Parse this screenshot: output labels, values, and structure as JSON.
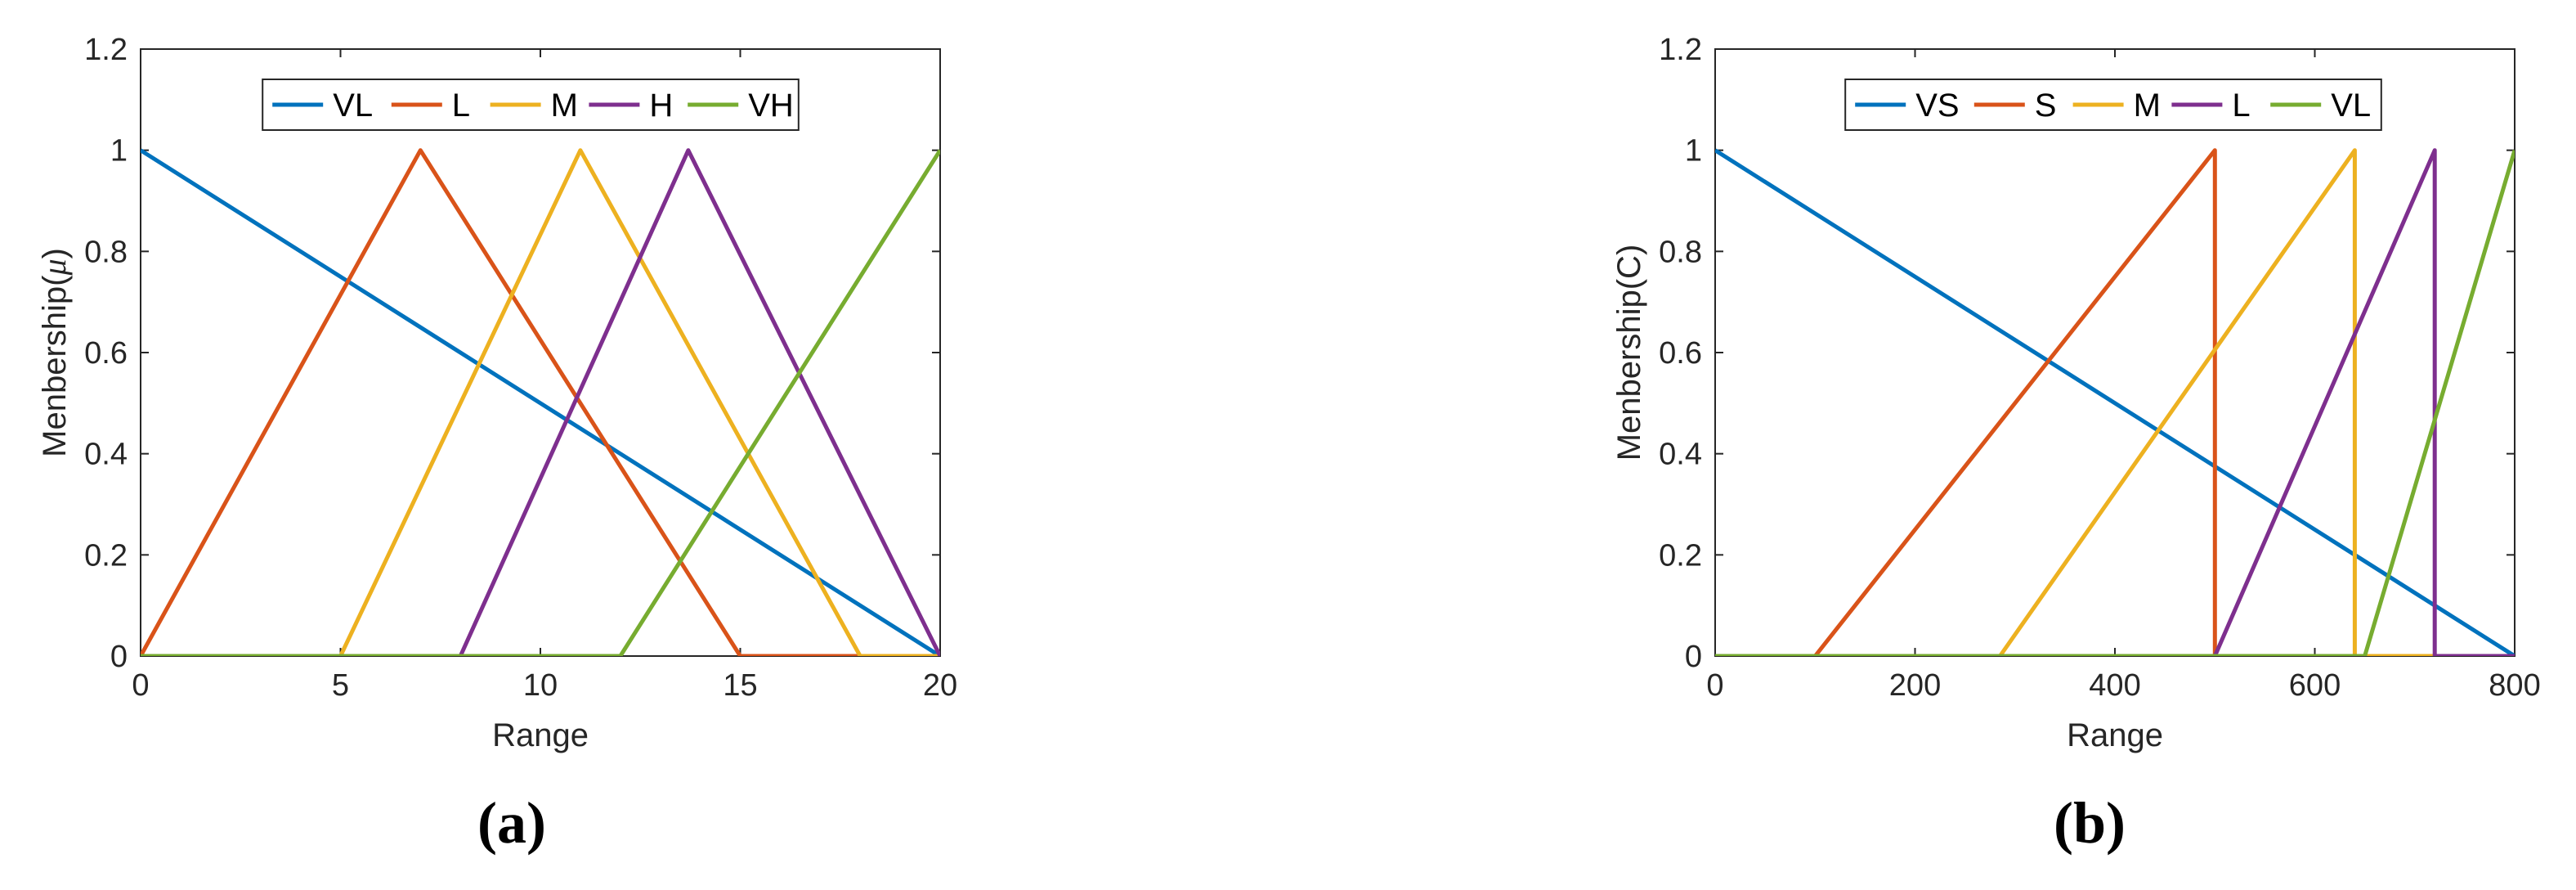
{
  "chart_data": [
    {
      "type": "line",
      "panel_label": "(a)",
      "xlabel": "Range",
      "ylabel": "Menbership(",
      "ylabel_symbol": "μ",
      "ylabel_close": ")",
      "xlim": [
        0,
        20
      ],
      "ylim": [
        0,
        1.2
      ],
      "xticks": [
        "0",
        "5",
        "10",
        "15",
        "20"
      ],
      "yticks": [
        "0",
        "0.2",
        "0.4",
        "0.6",
        "0.8",
        "1",
        "1.2"
      ],
      "grid": false,
      "legend_position": "top-center",
      "legend_orientation": "horizontal",
      "series": [
        {
          "name": "VL",
          "color": "#0072BD",
          "points": [
            [
              0,
              1
            ],
            [
              20,
              0
            ]
          ]
        },
        {
          "name": "L",
          "color": "#D95319",
          "points": [
            [
              0,
              0
            ],
            [
              7,
              1
            ],
            [
              15,
              0
            ],
            [
              20,
              0
            ]
          ]
        },
        {
          "name": "M",
          "color": "#EDB120",
          "points": [
            [
              0,
              0
            ],
            [
              5,
              0
            ],
            [
              11,
              1
            ],
            [
              18,
              0
            ],
            [
              20,
              0
            ]
          ]
        },
        {
          "name": "H",
          "color": "#7E2F8E",
          "points": [
            [
              0,
              0
            ],
            [
              8,
              0
            ],
            [
              13.7,
              1
            ],
            [
              20,
              0
            ]
          ]
        },
        {
          "name": "VH",
          "color": "#77AC30",
          "points": [
            [
              0,
              0
            ],
            [
              12,
              0
            ],
            [
              20,
              1
            ]
          ]
        }
      ]
    },
    {
      "type": "line",
      "panel_label": "(b)",
      "xlabel": "Range",
      "ylabel": "Menbership(C)",
      "xlim": [
        0,
        800
      ],
      "ylim": [
        0,
        1.2
      ],
      "xticks": [
        "0",
        "200",
        "400",
        "600",
        "800"
      ],
      "yticks": [
        "0",
        "0.2",
        "0.4",
        "0.6",
        "0.8",
        "1",
        "1.2"
      ],
      "grid": false,
      "legend_position": "top-center",
      "legend_orientation": "horizontal",
      "series": [
        {
          "name": "VS",
          "color": "#0072BD",
          "points": [
            [
              0,
              1
            ],
            [
              800,
              0
            ]
          ]
        },
        {
          "name": "S",
          "color": "#D95319",
          "points": [
            [
              0,
              0
            ],
            [
              100,
              0
            ],
            [
              500,
              1
            ],
            [
              500,
              0
            ],
            [
              800,
              0
            ]
          ]
        },
        {
          "name": "M",
          "color": "#EDB120",
          "points": [
            [
              0,
              0
            ],
            [
              285,
              0
            ],
            [
              640,
              1
            ],
            [
              640,
              0
            ],
            [
              800,
              0
            ]
          ]
        },
        {
          "name": "L",
          "color": "#7E2F8E",
          "points": [
            [
              0,
              0
            ],
            [
              500,
              0
            ],
            [
              720,
              1
            ],
            [
              720,
              0
            ],
            [
              800,
              0
            ]
          ]
        },
        {
          "name": "VL",
          "color": "#77AC30",
          "points": [
            [
              0,
              0
            ],
            [
              650,
              0
            ],
            [
              800,
              1
            ]
          ]
        }
      ]
    }
  ]
}
